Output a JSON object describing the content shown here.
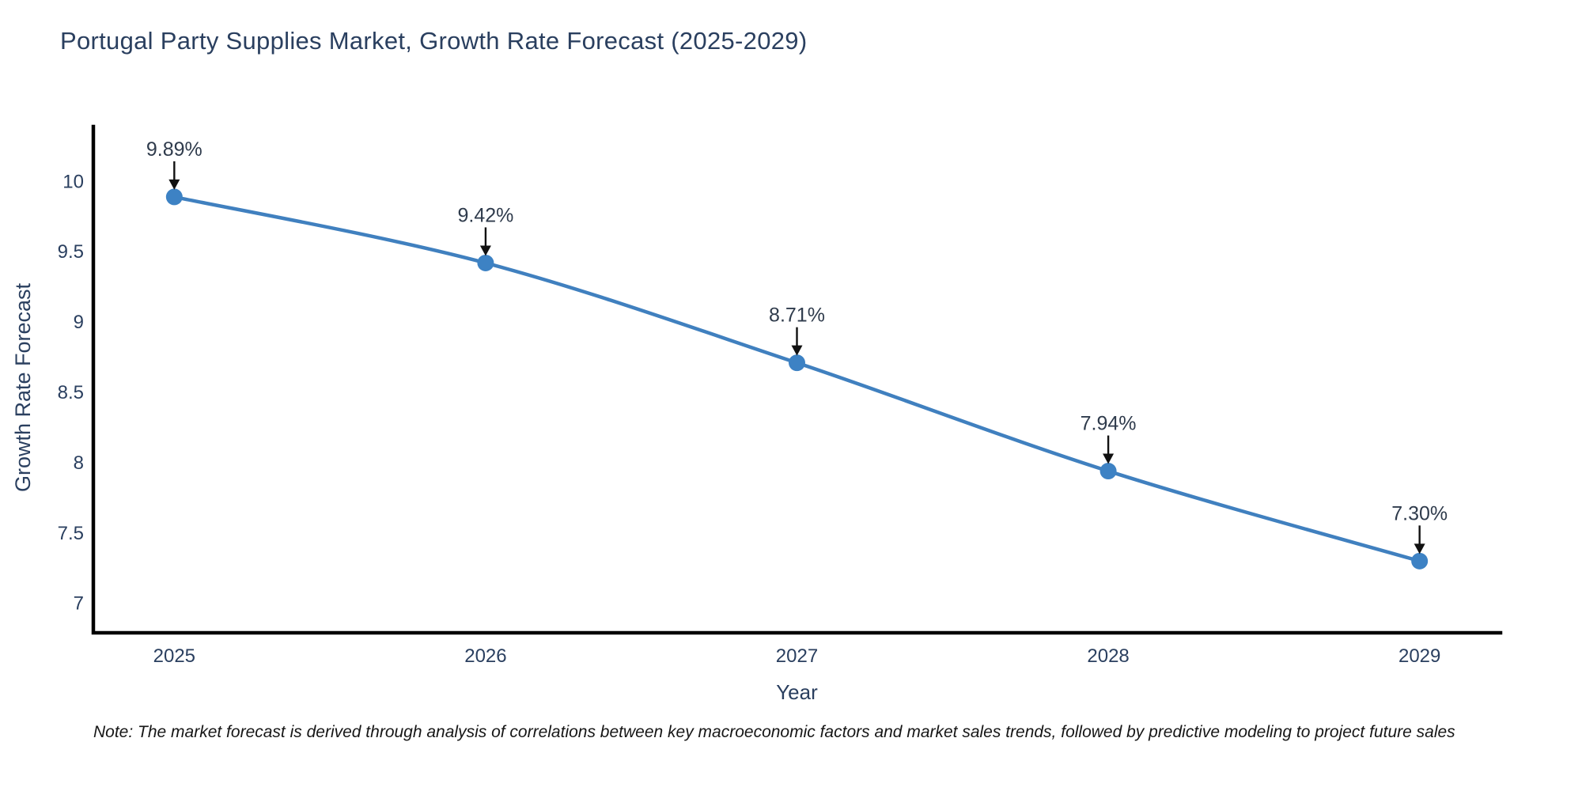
{
  "note": "Note: The market forecast is derived through analysis of correlations between key macroeconomic factors and market sales trends, followed by predictive modeling to project future sales",
  "chart_data": {
    "type": "line",
    "title": "Portugal Party Supplies Market, Growth Rate Forecast (2025-2029)",
    "xlabel": "Year",
    "ylabel": "Growth Rate Forecast",
    "x": [
      2025,
      2026,
      2027,
      2028,
      2029
    ],
    "values": [
      9.89,
      9.42,
      8.71,
      7.94,
      7.3
    ],
    "point_labels": [
      "9.89%",
      "9.42%",
      "8.71%",
      "7.94%",
      "7.30%"
    ],
    "xticks": [
      "2025",
      "2026",
      "2027",
      "2028",
      "2029"
    ],
    "yticks": [
      7,
      7.5,
      8,
      8.5,
      9,
      9.5,
      10
    ],
    "xlim": [
      2024.74,
      2029.26
    ],
    "ylim": [
      6.79,
      10.39
    ],
    "grid": false,
    "legend": "none",
    "annotation_style": "down-arrow",
    "colors": {
      "line": "#4080bf",
      "marker": "#3d82c4",
      "axis_text": "#2a3f5f",
      "annotation_text": "#2f3b4c",
      "arrow": "#111111",
      "spine": "#000000"
    }
  }
}
